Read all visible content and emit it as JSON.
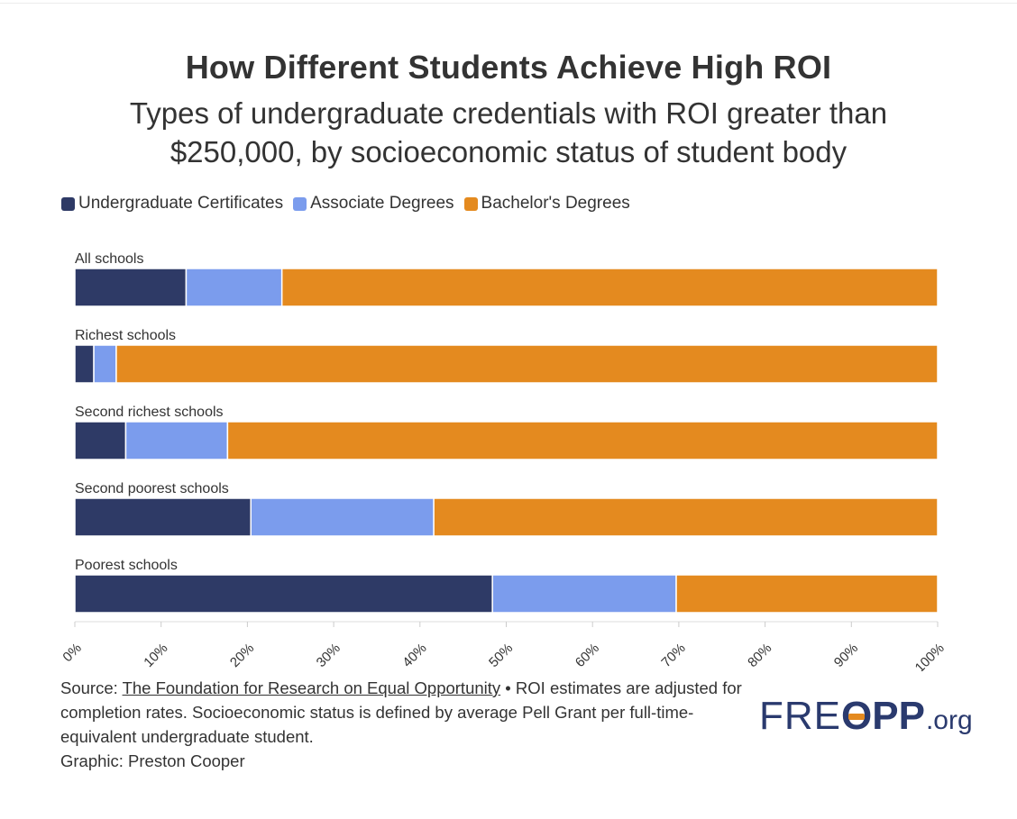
{
  "header": {
    "title": "How Different Students Achieve High ROI",
    "subtitle": "Types of undergraduate credentials with ROI greater than $250,000, by socioeconomic status of student body"
  },
  "colors": {
    "certificates": "#2e3a66",
    "associate": "#7b9ced",
    "bachelors": "#e48a1f",
    "axis": "#dddddd",
    "text": "#333333"
  },
  "legend": [
    {
      "label": "Undergraduate Certificates",
      "color": "#2e3a66"
    },
    {
      "label": "Associate Degrees",
      "color": "#7b9ced"
    },
    {
      "label": "Bachelor's Degrees",
      "color": "#e48a1f"
    }
  ],
  "chart_data": {
    "type": "bar",
    "orientation": "horizontal",
    "stacked": true,
    "title": "How Different Students Achieve High ROI",
    "categories": [
      "All schools",
      "Richest schools",
      "Second richest schools",
      "Second poorest schools",
      "Poorest schools"
    ],
    "series": [
      {
        "name": "Undergraduate Certificates",
        "values": [
          12.9,
          2.2,
          5.9,
          20.4,
          48.4
        ]
      },
      {
        "name": "Associate Degrees",
        "values": [
          11.1,
          2.6,
          11.8,
          21.2,
          21.3
        ]
      },
      {
        "name": "Bachelor's Degrees",
        "values": [
          76.0,
          95.2,
          82.3,
          58.4,
          30.3
        ]
      }
    ],
    "xlim": [
      0,
      100
    ],
    "xticks": [
      "0%",
      "10%",
      "20%",
      "30%",
      "40%",
      "50%",
      "60%",
      "70%",
      "80%",
      "90%",
      "100%"
    ],
    "legend_position": "top-left"
  },
  "footer": {
    "source_prefix": "Source: ",
    "source_link": "The Foundation for Research on Equal Opportunity",
    "note": " • ROI estimates are adjusted for completion rates. Socioeconomic status is defined by average Pell Grant per full-time-equivalent undergraduate student.",
    "graphic_credit": "Graphic: Preston Cooper"
  },
  "logo": {
    "left": "FRE",
    "mid": "O",
    "right": "PP",
    "tld": ".org"
  }
}
